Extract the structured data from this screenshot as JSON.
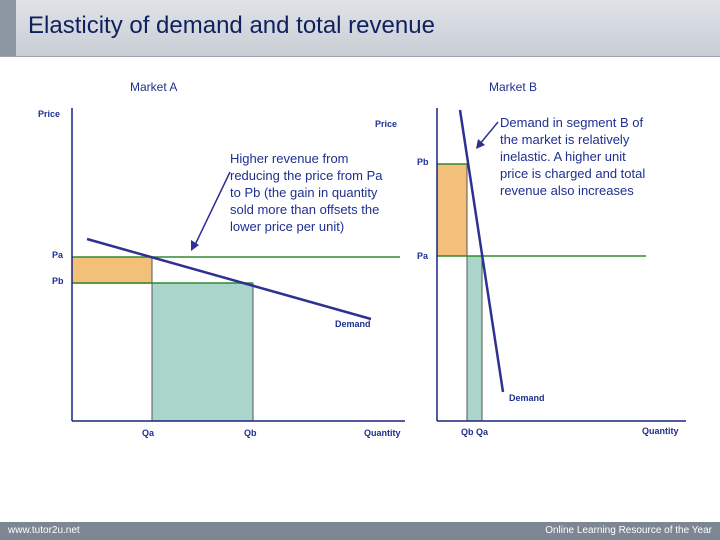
{
  "title": "Elasticity of demand and total revenue",
  "footer": {
    "left": "www.tutor2u.net",
    "right": "Online Learning Resource of the Year"
  },
  "colors": {
    "title": "#10205c",
    "text": "#1f2f8f",
    "demand_line": "#2e3192",
    "price_line": "#2e8b2e",
    "revenue_orange": "#f2c078",
    "revenue_green": "#a9d5cb"
  },
  "market_a": {
    "heading": "Market A",
    "price_label": "Price",
    "quantity_label": "Quantity",
    "pa_label": "Pa",
    "pb_label": "Pb",
    "qa_label": "Qa",
    "qb_label": "Qb",
    "demand_label": "Demand",
    "note": [
      "Higher revenue from",
      "reducing the price from Pa",
      "to Pb (the gain in quantity",
      "sold more than offsets the",
      "lower price per unit)"
    ]
  },
  "market_b": {
    "heading": "Market B",
    "price_label": "Price",
    "quantity_label": "Quantity",
    "pa_label": "Pa",
    "pb_label": "Pb",
    "qb_qa_label": "Qb  Qa",
    "demand_label": "Demand",
    "note": [
      "Demand in segment B of",
      "the market is relatively",
      "inelastic. A higher unit",
      "price is charged and total",
      "revenue also increases"
    ]
  }
}
